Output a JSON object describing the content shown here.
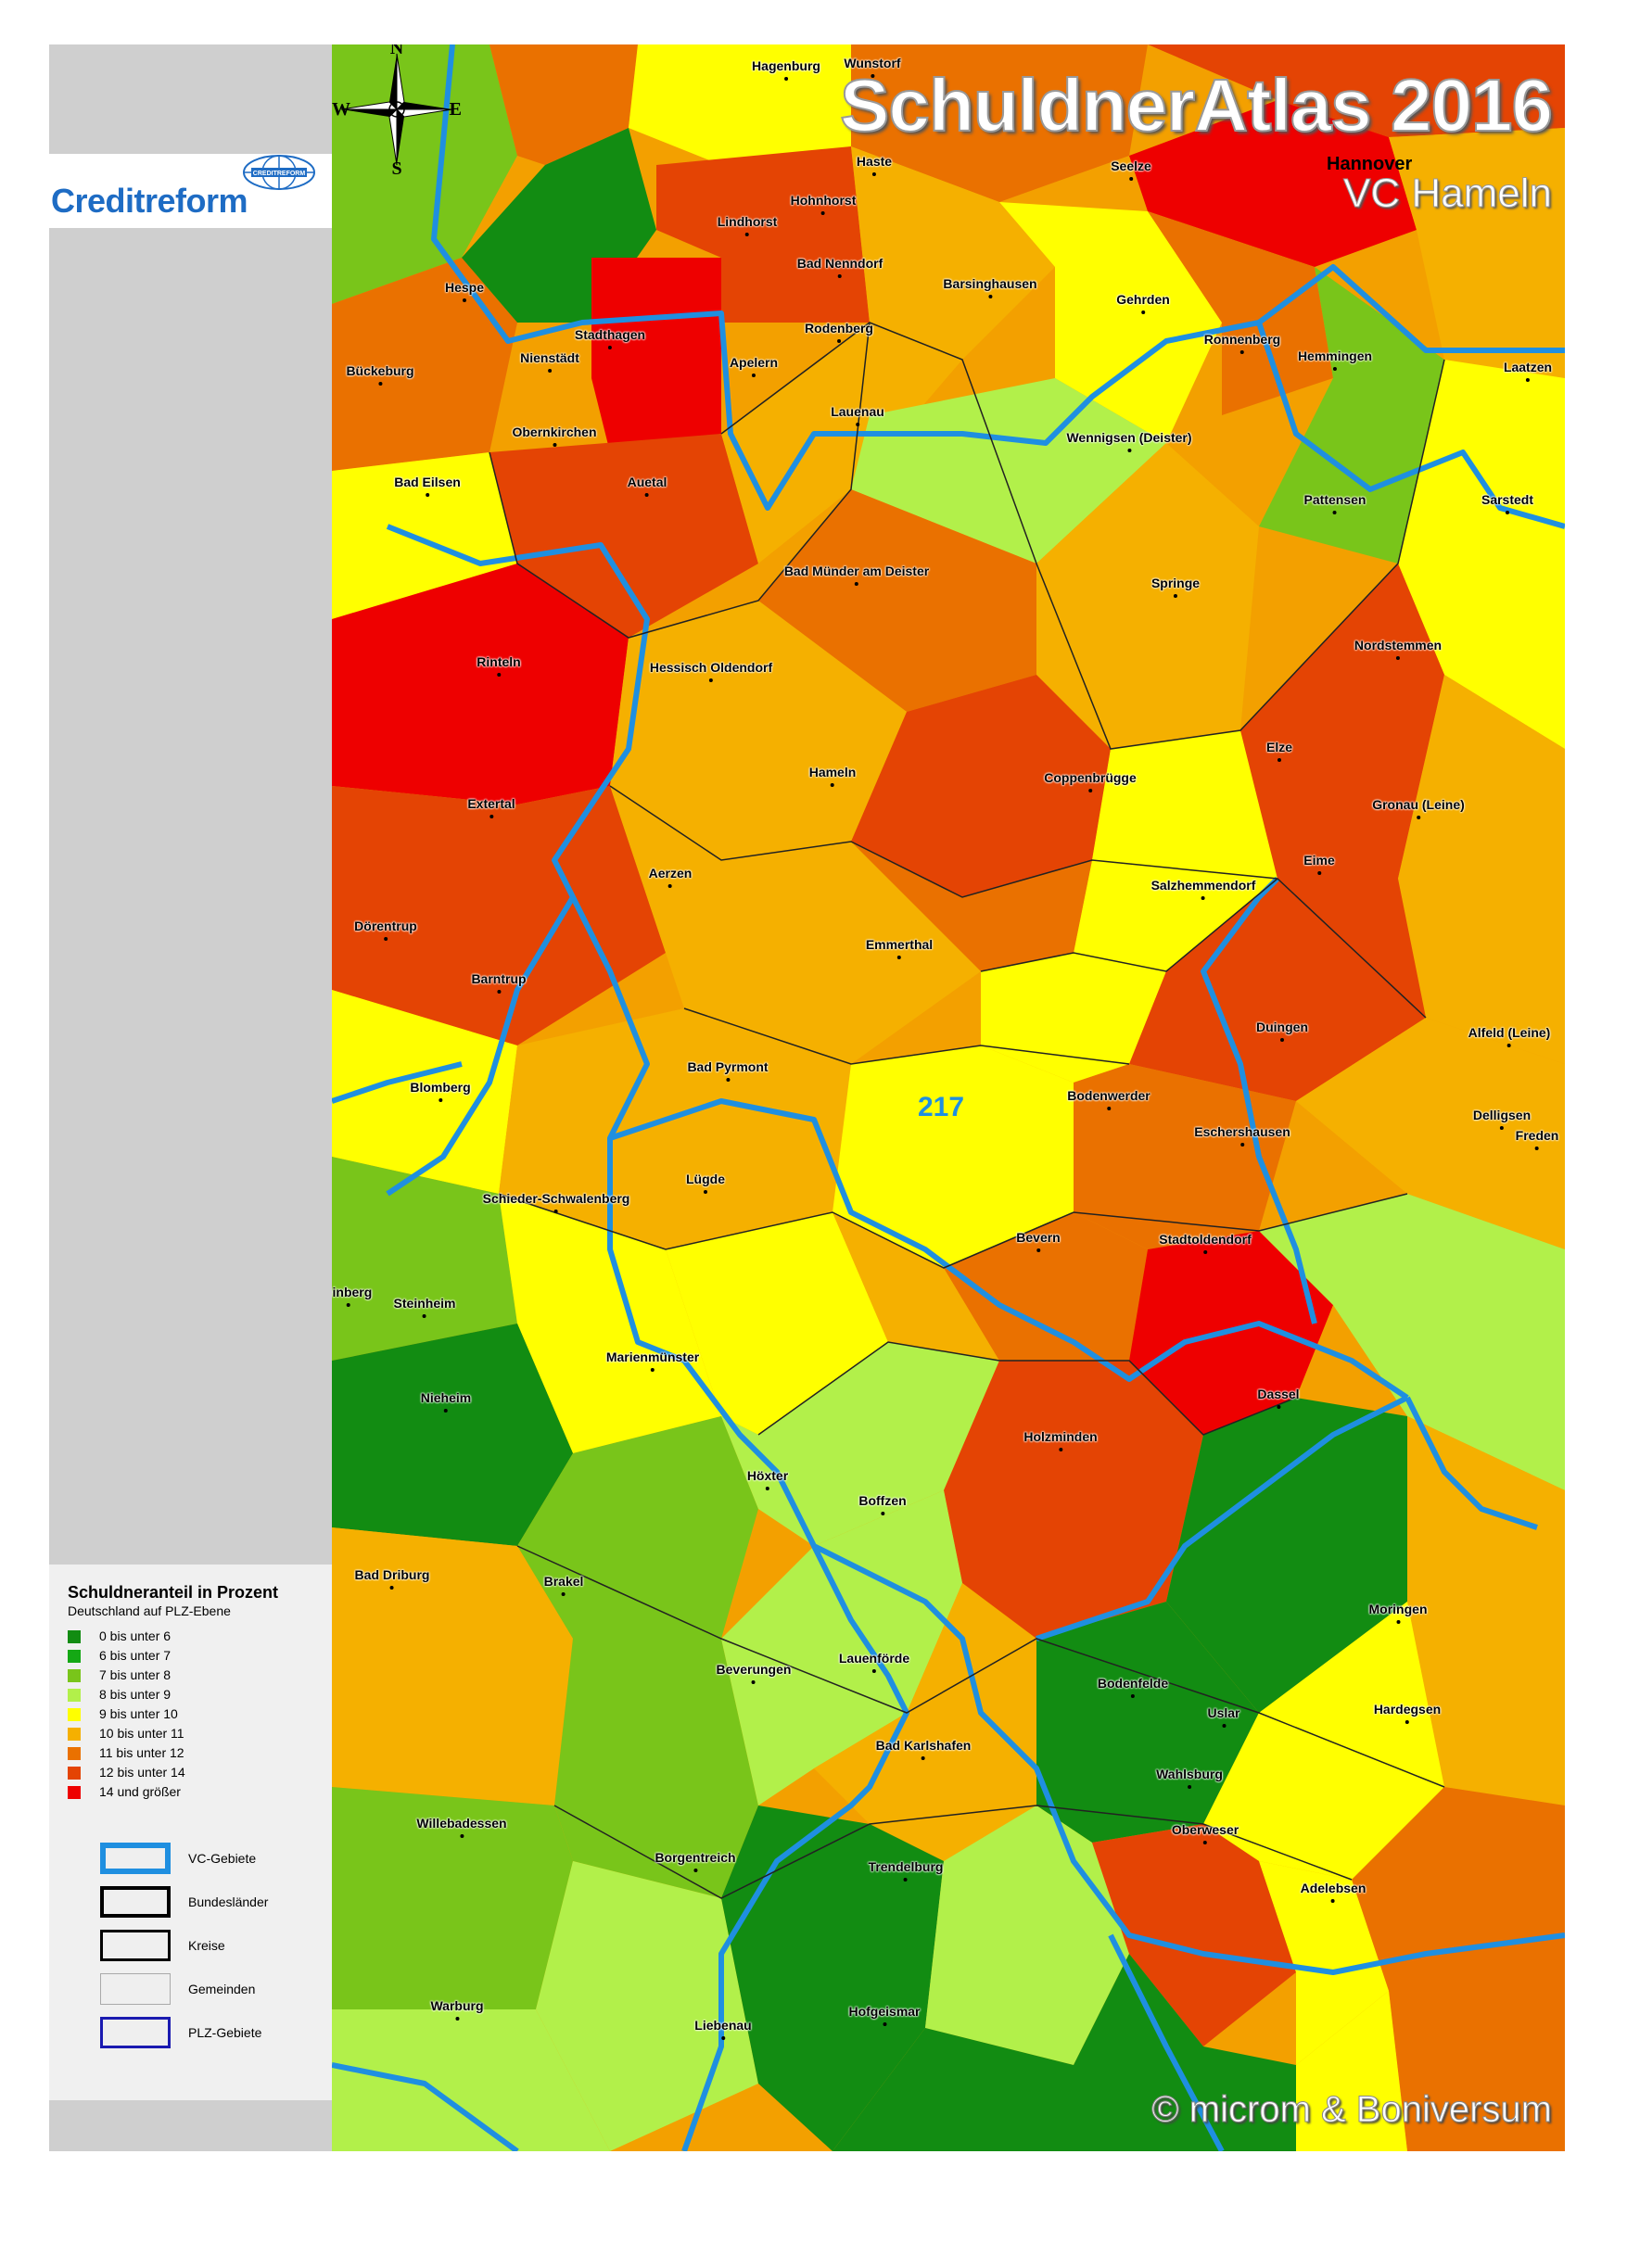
{
  "title": "SchuldnerAtlas 2016",
  "subtitle": "VC Hameln",
  "brand": "Creditreform",
  "brand_globe_text": "CREDITREFORM",
  "copyright": "© microm & Boniversum",
  "vc_number": "217",
  "region_label_hannover": "Hannover",
  "compass": {
    "n": "N",
    "s": "S",
    "e": "E",
    "w": "W"
  },
  "legend": {
    "title": "Schuldneranteil in Prozent",
    "subtitle": "Deutschland auf PLZ-Ebene",
    "classes": [
      {
        "label": "0 bis unter   6",
        "color": "#128c12"
      },
      {
        "label": "6 bis unter   7",
        "color": "#14a814"
      },
      {
        "label": "7 bis unter   8",
        "color": "#79c51a"
      },
      {
        "label": "8 bis unter   9",
        "color": "#b2f04a"
      },
      {
        "label": "9 bis unter 10",
        "color": "#ffff00"
      },
      {
        "label": "10 bis unter 11",
        "color": "#f5b000"
      },
      {
        "label": "11 bis unter 12",
        "color": "#ea7100"
      },
      {
        "label": "12 bis unter 14",
        "color": "#e44404"
      },
      {
        "label": "14 und größer",
        "color": "#ee0000"
      }
    ],
    "boundaries": [
      {
        "label": "VC-Gebiete",
        "stroke": "#1f8fe0"
      },
      {
        "label": "Bundesländer",
        "stroke": "#000000"
      },
      {
        "label": "Kreise",
        "stroke": "#000000"
      },
      {
        "label": "Gemeinden",
        "stroke": "#aaaaaa"
      },
      {
        "label": "PLZ-Gebiete",
        "stroke": "#1a1ab0"
      }
    ]
  },
  "places": [
    "Hagenburg",
    "Wunstorf",
    "Haste",
    "Seelze",
    "Hohnhorst",
    "Lindhorst",
    "Bad Nenndorf",
    "Hespe",
    "Barsinghausen",
    "Gehrden",
    "Stadthagen",
    "Nienstädt",
    "Apelern",
    "Rodenberg",
    "Ronnenberg",
    "Hemmingen",
    "Laatzen",
    "Bückeburg",
    "Lauenau",
    "Obernkirchen",
    "Wennigsen (Deister)",
    "Bad Eilsen",
    "Auetal",
    "Pattensen",
    "Sarstedt",
    "Bad Münder am Deister",
    "Springe",
    "Nordstemmen",
    "Rinteln",
    "Hessisch Oldendorf",
    "Elze",
    "Hameln",
    "Coppenbrügge",
    "Extertal",
    "Gronau (Leine)",
    "Eime",
    "Aerzen",
    "Salzhemmendorf",
    "Dörentrup",
    "Emmerthal",
    "Barntrup",
    "Duingen",
    "Alfeld (Leine)",
    "Bad Pyrmont",
    "Blomberg",
    "Bodenwerder",
    "Delligsen",
    "Eschershausen",
    "Freden",
    "Lügde",
    "Schieder-Schwalenberg",
    "Bevern",
    "Stadtoldendorf",
    "Steinheim",
    "einberg",
    "Marienmünster",
    "Dassel",
    "Nieheim",
    "Holzminden",
    "Höxter",
    "Boffzen",
    "Bad Driburg",
    "Brakel",
    "Moringen",
    "Beverungen",
    "Lauenförde",
    "Bodenfelde",
    "Hardegsen",
    "Uslar",
    "Bad Karlshafen",
    "Wahlsburg",
    "Willebadessen",
    "Borgentreich",
    "Oberweser",
    "Trendelburg",
    "Adelebsen",
    "Warburg",
    "Liebenau",
    "Hofgeismar"
  ]
}
